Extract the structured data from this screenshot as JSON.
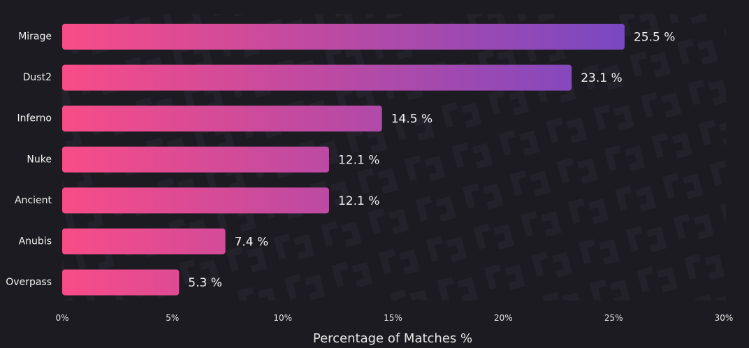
{
  "chart_data": {
    "type": "bar",
    "orientation": "horizontal",
    "categories": [
      "Mirage",
      "Dust2",
      "Inferno",
      "Nuke",
      "Ancient",
      "Anubis",
      "Overpass"
    ],
    "values": [
      25.5,
      23.1,
      14.5,
      12.1,
      12.1,
      7.4,
      5.3
    ],
    "value_labels": [
      "25.5 %",
      "23.1 %",
      "14.5 %",
      "12.1 %",
      "12.1 %",
      "7.4 %",
      "5.3 %"
    ],
    "xlabel": "Percentage of Matches %",
    "ylabel": "",
    "xlim": [
      0,
      30
    ],
    "x_ticks": [
      "0%",
      "5%",
      "10%",
      "15%",
      "20%",
      "25%",
      "30%"
    ],
    "grid": false,
    "colors": {
      "gradient_start": "#f84c87",
      "gradient_end": "#7a48c2",
      "background": "#1c1b21",
      "text": "#f2f2f2"
    }
  }
}
